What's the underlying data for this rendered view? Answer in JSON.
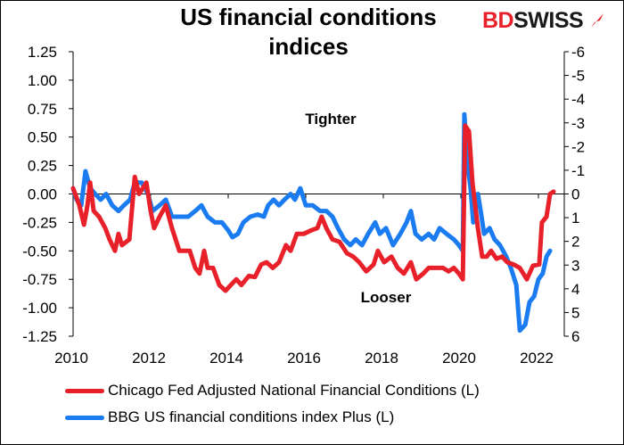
{
  "chart_data": {
    "type": "line",
    "title": "US financial conditions indices",
    "title_lines": [
      "US financial conditions",
      "indices"
    ],
    "xlim": [
      2010,
      2022.7
    ],
    "xticks": [
      2010,
      2012,
      2014,
      2016,
      2018,
      2020,
      2022
    ],
    "ylim": [
      -1.25,
      1.25
    ],
    "yticks": [
      "1.25",
      "1.00",
      "0.75",
      "0.50",
      "0.25",
      "0.00",
      "-0.25",
      "-0.50",
      "-0.75",
      "-1.00",
      "-1.25"
    ],
    "y2lim": [
      6,
      -6
    ],
    "y2ticks": [
      "-6",
      "-5",
      "-4",
      "-3",
      "-2",
      "-1",
      "0",
      "1",
      "2",
      "3",
      "4",
      "5",
      "6"
    ],
    "y2_inverted": true,
    "grid": false,
    "legend_placement": "bottom",
    "annotations": [
      {
        "text": "Tighter"
      },
      {
        "text": "Looser"
      }
    ],
    "series": [
      {
        "name": "Chicago Fed Adjusted National Financial Conditions (L)",
        "color": "#e8202a",
        "points": [
          [
            2010.0,
            0.05
          ],
          [
            2010.16,
            -0.1
          ],
          [
            2010.28,
            -0.27
          ],
          [
            2010.37,
            -0.1
          ],
          [
            2010.44,
            0.1
          ],
          [
            2010.53,
            -0.15
          ],
          [
            2010.67,
            -0.2
          ],
          [
            2010.83,
            -0.3
          ],
          [
            2010.94,
            -0.4
          ],
          [
            2011.08,
            -0.5
          ],
          [
            2011.17,
            -0.35
          ],
          [
            2011.26,
            -0.45
          ],
          [
            2011.45,
            -0.4
          ],
          [
            2011.59,
            0.15
          ],
          [
            2011.7,
            0.0
          ],
          [
            2011.89,
            0.1
          ],
          [
            2012.0,
            -0.15
          ],
          [
            2012.09,
            -0.3
          ],
          [
            2012.23,
            -0.2
          ],
          [
            2012.39,
            -0.1
          ],
          [
            2012.55,
            -0.3
          ],
          [
            2012.74,
            -0.5
          ],
          [
            2012.85,
            -0.5
          ],
          [
            2013.01,
            -0.5
          ],
          [
            2013.15,
            -0.65
          ],
          [
            2013.26,
            -0.7
          ],
          [
            2013.38,
            -0.5
          ],
          [
            2013.47,
            -0.65
          ],
          [
            2013.61,
            -0.65
          ],
          [
            2013.77,
            -0.8
          ],
          [
            2013.93,
            -0.85
          ],
          [
            2014.07,
            -0.8
          ],
          [
            2014.21,
            -0.75
          ],
          [
            2014.34,
            -0.8
          ],
          [
            2014.53,
            -0.72
          ],
          [
            2014.69,
            -0.73
          ],
          [
            2014.85,
            -0.62
          ],
          [
            2014.99,
            -0.6
          ],
          [
            2015.15,
            -0.65
          ],
          [
            2015.31,
            -0.6
          ],
          [
            2015.49,
            -0.45
          ],
          [
            2015.61,
            -0.5
          ],
          [
            2015.77,
            -0.35
          ],
          [
            2015.95,
            -0.35
          ],
          [
            2016.14,
            -0.32
          ],
          [
            2016.3,
            -0.3
          ],
          [
            2016.41,
            -0.2
          ],
          [
            2016.53,
            -0.3
          ],
          [
            2016.69,
            -0.4
          ],
          [
            2016.87,
            -0.42
          ],
          [
            2017.06,
            -0.52
          ],
          [
            2017.22,
            -0.55
          ],
          [
            2017.38,
            -0.6
          ],
          [
            2017.56,
            -0.68
          ],
          [
            2017.75,
            -0.62
          ],
          [
            2017.86,
            -0.5
          ],
          [
            2018.02,
            -0.6
          ],
          [
            2018.21,
            -0.55
          ],
          [
            2018.37,
            -0.65
          ],
          [
            2018.53,
            -0.7
          ],
          [
            2018.71,
            -0.6
          ],
          [
            2018.85,
            -0.75
          ],
          [
            2019.03,
            -0.7
          ],
          [
            2019.17,
            -0.65
          ],
          [
            2019.36,
            -0.65
          ],
          [
            2019.54,
            -0.65
          ],
          [
            2019.68,
            -0.68
          ],
          [
            2019.82,
            -0.65
          ],
          [
            2019.95,
            -0.7
          ],
          [
            2020.05,
            -0.75
          ],
          [
            2020.11,
            0.6
          ],
          [
            2020.21,
            0.55
          ],
          [
            2020.3,
            0.1
          ],
          [
            2020.44,
            -0.3
          ],
          [
            2020.55,
            -0.55
          ],
          [
            2020.67,
            -0.55
          ],
          [
            2020.78,
            -0.5
          ],
          [
            2020.92,
            -0.57
          ],
          [
            2021.06,
            -0.55
          ],
          [
            2021.2,
            -0.6
          ],
          [
            2021.36,
            -0.62
          ],
          [
            2021.52,
            -0.65
          ],
          [
            2021.7,
            -0.75
          ],
          [
            2021.86,
            -0.63
          ],
          [
            2022.02,
            -0.62
          ],
          [
            2022.09,
            -0.25
          ],
          [
            2022.21,
            -0.2
          ],
          [
            2022.3,
            0.0
          ],
          [
            2022.39,
            0.02
          ]
        ]
      },
      {
        "name": "BBG US financial conditions index Plus (L)",
        "color": "#1a7cf0",
        "points": [
          [
            2010.0,
            0.05
          ],
          [
            2010.09,
            -0.05
          ],
          [
            2010.21,
            -0.1
          ],
          [
            2010.32,
            0.2
          ],
          [
            2010.44,
            0.05
          ],
          [
            2010.57,
            0.0
          ],
          [
            2010.71,
            -0.05
          ],
          [
            2010.85,
            0.0
          ],
          [
            2011.01,
            -0.1
          ],
          [
            2011.17,
            -0.15
          ],
          [
            2011.31,
            -0.1
          ],
          [
            2011.47,
            -0.05
          ],
          [
            2011.59,
            0.1
          ],
          [
            2011.77,
            0.1
          ],
          [
            2011.93,
            0.0
          ],
          [
            2012.05,
            -0.15
          ],
          [
            2012.23,
            -0.1
          ],
          [
            2012.39,
            -0.05
          ],
          [
            2012.55,
            -0.2
          ],
          [
            2012.74,
            -0.2
          ],
          [
            2012.97,
            -0.2
          ],
          [
            2013.15,
            -0.15
          ],
          [
            2013.31,
            -0.1
          ],
          [
            2013.47,
            -0.2
          ],
          [
            2013.66,
            -0.25
          ],
          [
            2013.84,
            -0.25
          ],
          [
            2014.0,
            -0.32
          ],
          [
            2014.11,
            -0.38
          ],
          [
            2014.25,
            -0.35
          ],
          [
            2014.39,
            -0.25
          ],
          [
            2014.57,
            -0.2
          ],
          [
            2014.76,
            -0.18
          ],
          [
            2014.92,
            -0.2
          ],
          [
            2015.03,
            -0.1
          ],
          [
            2015.17,
            -0.05
          ],
          [
            2015.31,
            -0.1
          ],
          [
            2015.45,
            -0.05
          ],
          [
            2015.61,
            0.0
          ],
          [
            2015.72,
            -0.05
          ],
          [
            2015.86,
            0.05
          ],
          [
            2016.0,
            -0.1
          ],
          [
            2016.18,
            -0.1
          ],
          [
            2016.37,
            -0.15
          ],
          [
            2016.53,
            -0.15
          ],
          [
            2016.69,
            -0.2
          ],
          [
            2016.83,
            -0.3
          ],
          [
            2016.99,
            -0.4
          ],
          [
            2017.15,
            -0.45
          ],
          [
            2017.29,
            -0.4
          ],
          [
            2017.45,
            -0.45
          ],
          [
            2017.61,
            -0.35
          ],
          [
            2017.79,
            -0.25
          ],
          [
            2017.91,
            -0.35
          ],
          [
            2018.07,
            -0.3
          ],
          [
            2018.25,
            -0.45
          ],
          [
            2018.44,
            -0.35
          ],
          [
            2018.6,
            -0.25
          ],
          [
            2018.71,
            -0.15
          ],
          [
            2018.83,
            -0.35
          ],
          [
            2018.99,
            -0.4
          ],
          [
            2019.17,
            -0.35
          ],
          [
            2019.31,
            -0.4
          ],
          [
            2019.45,
            -0.3
          ],
          [
            2019.63,
            -0.35
          ],
          [
            2019.82,
            -0.4
          ],
          [
            2019.95,
            -0.45
          ],
          [
            2020.05,
            -0.5
          ],
          [
            2020.09,
            0.7
          ],
          [
            2020.16,
            0.3
          ],
          [
            2020.25,
            0.05
          ],
          [
            2020.32,
            -0.25
          ],
          [
            2020.44,
            0.0
          ],
          [
            2020.51,
            -0.15
          ],
          [
            2020.6,
            -0.35
          ],
          [
            2020.74,
            -0.3
          ],
          [
            2020.87,
            -0.4
          ],
          [
            2021.01,
            -0.45
          ],
          [
            2021.17,
            -0.55
          ],
          [
            2021.29,
            -0.65
          ],
          [
            2021.43,
            -0.8
          ],
          [
            2021.52,
            -1.2
          ],
          [
            2021.66,
            -1.15
          ],
          [
            2021.77,
            -0.95
          ],
          [
            2021.89,
            -0.9
          ],
          [
            2022.0,
            -0.75
          ],
          [
            2022.11,
            -0.7
          ],
          [
            2022.21,
            -0.55
          ],
          [
            2022.3,
            -0.5
          ]
        ]
      }
    ]
  },
  "logo": {
    "text_red": "BD",
    "text_dark": "SWISS"
  }
}
